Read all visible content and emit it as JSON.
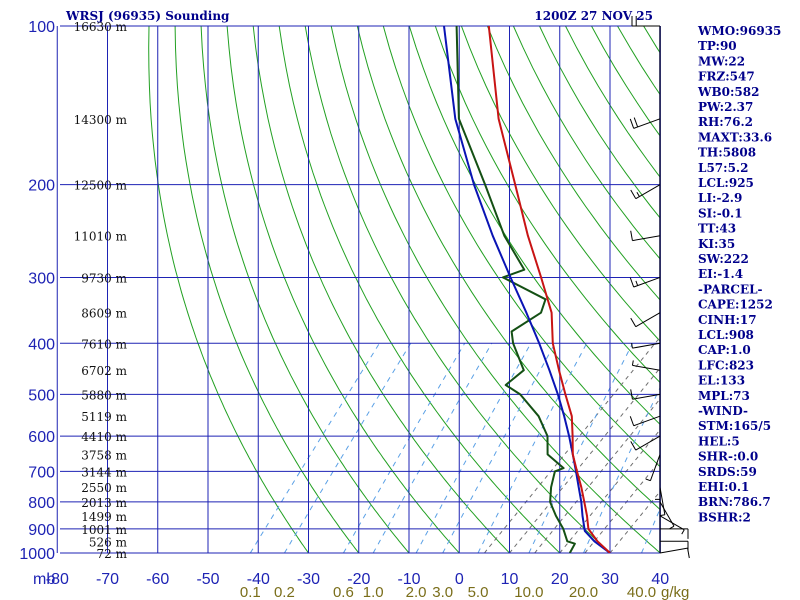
{
  "chart_data": {
    "type": "skew-t",
    "title": "WRSJ (96935) Sounding",
    "time": "1200Z 27 NOV 25",
    "pressure_unit": "mb",
    "mixing_ratio_unit": "g/kg",
    "pressure_levels": [
      1000,
      900,
      800,
      700,
      600,
      500,
      400,
      300,
      200,
      100
    ],
    "pressure_labels": [
      "1000",
      "900",
      "800",
      "700",
      "600",
      "500",
      "400",
      "300",
      "200",
      "100"
    ],
    "temperature_ticks": [
      -80,
      -70,
      -60,
      -50,
      -40,
      -30,
      -20,
      -10,
      0,
      10,
      20,
      30,
      40
    ],
    "temperature_labels": [
      "-80",
      "-70",
      "-60",
      "-50",
      "-40",
      "-30",
      "-20",
      "-10",
      "0",
      "10",
      "20",
      "30",
      "40"
    ],
    "mixing_ratio_values": [
      0.1,
      0.2,
      0.6,
      1.0,
      2.0,
      3.0,
      5.0,
      10.0,
      20.0,
      40.0
    ],
    "mixing_ratio_labels": [
      "0.1",
      "0.2",
      "0.6",
      "1.0",
      "2.0",
      "3.0",
      "5.0",
      "10.0",
      "20.0",
      "40.0"
    ],
    "height_labels": [
      {
        "p": 1000,
        "text": "72 m"
      },
      {
        "p": 950,
        "text": "526 m"
      },
      {
        "p": 900,
        "text": "1001 m"
      },
      {
        "p": 850,
        "text": "1499 m"
      },
      {
        "p": 800,
        "text": "2013 m"
      },
      {
        "p": 750,
        "text": "2550 m"
      },
      {
        "p": 700,
        "text": "3144 m"
      },
      {
        "p": 650,
        "text": "3758 m"
      },
      {
        "p": 600,
        "text": "4410 m"
      },
      {
        "p": 550,
        "text": "5119 m"
      },
      {
        "p": 500,
        "text": "5880 m"
      },
      {
        "p": 450,
        "text": "6702 m"
      },
      {
        "p": 400,
        "text": "7610 m"
      },
      {
        "p": 350,
        "text": "8609 m"
      },
      {
        "p": 300,
        "text": "9730 m"
      },
      {
        "p": 250,
        "text": "11010 m"
      },
      {
        "p": 200,
        "text": "12500 m"
      },
      {
        "p": 150,
        "text": "14300 m"
      },
      {
        "p": 100,
        "text": "16630 m"
      }
    ],
    "temperature_profile": [
      [
        1000,
        30
      ],
      [
        950,
        25.6
      ],
      [
        900,
        21.8
      ],
      [
        850,
        19.4
      ],
      [
        800,
        16.6
      ],
      [
        750,
        13.6
      ],
      [
        700,
        10.2
      ],
      [
        650,
        6.6
      ],
      [
        600,
        3.6
      ],
      [
        550,
        0.2
      ],
      [
        500,
        -4.6
      ],
      [
        450,
        -9.8
      ],
      [
        400,
        -15.4
      ],
      [
        350,
        -20.6
      ],
      [
        300,
        -28.4
      ],
      [
        250,
        -37.8
      ],
      [
        200,
        -48.6
      ],
      [
        150,
        -62.6
      ],
      [
        100,
        -79.6
      ]
    ],
    "dewpoint_profile": [
      [
        1000,
        22
      ],
      [
        960,
        21.5
      ],
      [
        950,
        19.6
      ],
      [
        900,
        16.8
      ],
      [
        850,
        13.2
      ],
      [
        800,
        9.8
      ],
      [
        750,
        7.6
      ],
      [
        700,
        5.8
      ],
      [
        690,
        7.0
      ],
      [
        650,
        1.6
      ],
      [
        600,
        -1.4
      ],
      [
        550,
        -6.4
      ],
      [
        500,
        -13.6
      ],
      [
        480,
        -18.0
      ],
      [
        450,
        -16.8
      ],
      [
        400,
        -23.3
      ],
      [
        380,
        -25.5
      ],
      [
        350,
        -22.7
      ],
      [
        330,
        -24.0
      ],
      [
        300,
        -36.0
      ],
      [
        290,
        -33.0
      ],
      [
        250,
        -42.5
      ],
      [
        200,
        -54.6
      ],
      [
        150,
        -70.5
      ],
      [
        100,
        -86.0
      ]
    ],
    "parcel_profile": [
      [
        1000,
        30
      ],
      [
        950,
        25.0
      ],
      [
        908,
        21.4
      ],
      [
        850,
        18.5
      ],
      [
        800,
        16.0
      ],
      [
        750,
        13.1
      ],
      [
        700,
        10.0
      ],
      [
        650,
        6.6
      ],
      [
        600,
        2.9
      ],
      [
        550,
        -1.3
      ],
      [
        500,
        -6.1
      ],
      [
        450,
        -11.7
      ],
      [
        400,
        -18.1
      ],
      [
        350,
        -25.6
      ],
      [
        300,
        -34.5
      ],
      [
        250,
        -44.8
      ],
      [
        200,
        -56.8
      ],
      [
        150,
        -71.2
      ],
      [
        100,
        -88.5
      ]
    ],
    "wind_barbs": [
      {
        "p": 1000,
        "dir": 80,
        "spd": 10
      },
      {
        "p": 950,
        "dir": 90,
        "spd": 10
      },
      {
        "p": 900,
        "dir": 90,
        "spd": 10
      },
      {
        "p": 850,
        "dir": 120,
        "spd": 5
      },
      {
        "p": 800,
        "dir": 150,
        "spd": 5
      },
      {
        "p": 750,
        "dir": 170,
        "spd": 5
      },
      {
        "p": 700,
        "dir": 180,
        "spd": 5
      },
      {
        "p": 650,
        "dir": 200,
        "spd": 5
      },
      {
        "p": 600,
        "dir": 240,
        "spd": 10
      },
      {
        "p": 550,
        "dir": 250,
        "spd": 10
      },
      {
        "p": 500,
        "dir": 260,
        "spd": 10
      },
      {
        "p": 450,
        "dir": 280,
        "spd": 5
      },
      {
        "p": 400,
        "dir": 260,
        "spd": 5
      },
      {
        "p": 350,
        "dir": 240,
        "spd": 10
      },
      {
        "p": 300,
        "dir": 250,
        "spd": 15
      },
      {
        "p": 250,
        "dir": 260,
        "spd": 10
      },
      {
        "p": 200,
        "dir": 240,
        "spd": 15
      },
      {
        "p": 150,
        "dir": 250,
        "spd": 20
      },
      {
        "p": 100,
        "dir": 270,
        "spd": 20
      }
    ],
    "indices": [
      "WMO:96935",
      "TP:90",
      "MW:22",
      "FRZ:547",
      "WB0:582",
      "PW:2.37",
      "RH:76.2",
      "MAXT:33.6",
      "TH:5808",
      "L57:5.2",
      "LCL:925",
      "LI:-2.9",
      "SI:-0.1",
      "TT:43",
      "KI:35",
      "SW:222",
      "EI:-1.4",
      "-PARCEL-",
      "CAPE:1252",
      "CINH:17",
      "LCL:908",
      "CAP:1.0",
      "LFC:823",
      "EL:133",
      "MPL:73",
      "-WIND-",
      "STM:165/5",
      "HEL:5",
      "SHR-:0.0",
      "SRDS:59",
      "EHI:0.1",
      "BRN:786.7",
      "BSHR:2"
    ],
    "colors": {
      "background": "#ffffff",
      "grid": "#1e23b4",
      "dry_adiabat": "#22a022",
      "moist_adiabat": "#6e6e6e",
      "mixing_ratio": "#5aa0e6",
      "temperature": "#c81414",
      "dewpoint": "#145014",
      "parcel": "#0a14b4",
      "label_text": "#00008b"
    }
  }
}
